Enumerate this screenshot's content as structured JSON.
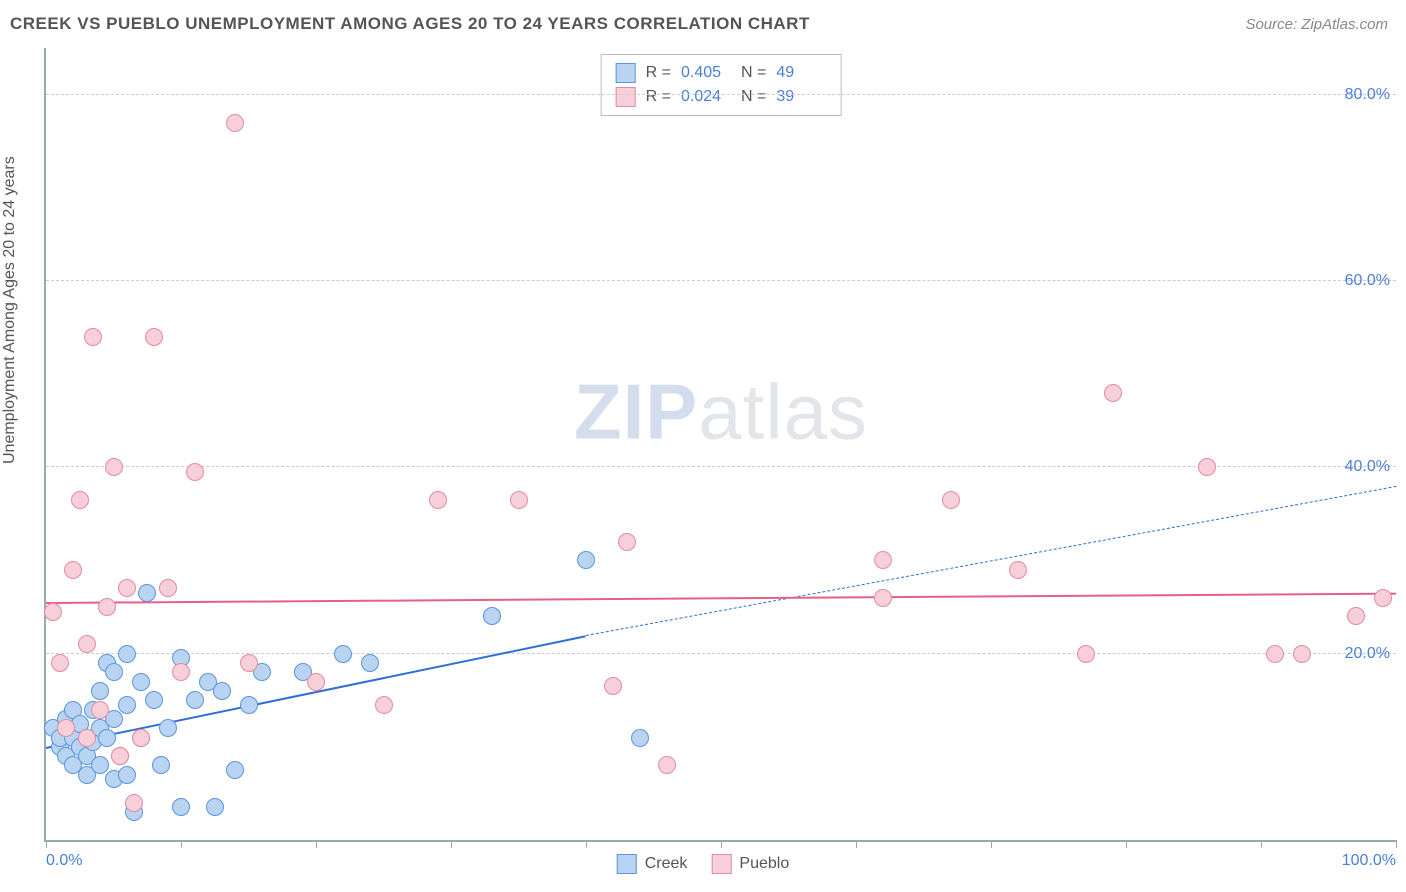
{
  "header": {
    "title": "CREEK VS PUEBLO UNEMPLOYMENT AMONG AGES 20 TO 24 YEARS CORRELATION CHART",
    "source": "Source: ZipAtlas.com"
  },
  "watermark": {
    "part1": "ZIP",
    "part2": "atlas"
  },
  "chart": {
    "type": "scatter",
    "y_axis_label": "Unemployment Among Ages 20 to 24 years",
    "xlim": [
      0,
      100
    ],
    "ylim": [
      0,
      85
    ],
    "x_ticks": [
      0,
      10,
      20,
      30,
      40,
      50,
      60,
      70,
      80,
      90,
      100
    ],
    "x_tick_labels": {
      "0": "0.0%",
      "100": "100.0%"
    },
    "y_gridlines": [
      20,
      40,
      60,
      80
    ],
    "y_tick_labels": {
      "20": "20.0%",
      "40": "40.0%",
      "60": "60.0%",
      "80": "80.0%"
    },
    "background_color": "#ffffff",
    "grid_color": "#cccccc",
    "axis_color": "#99aaaa",
    "tick_label_color": "#4a7fd8",
    "marker_radius": 9,
    "series": [
      {
        "name": "Creek",
        "fill_color": "#b9d4f2",
        "stroke_color": "#5b95dd",
        "trend_color": "#2d6fd6",
        "R": "0.405",
        "N": "49",
        "trend": {
          "x1": 0,
          "y1": 10,
          "x2": 40,
          "y2": 22,
          "solid": true
        },
        "trend_ext": {
          "x1": 40,
          "y1": 22,
          "x2": 100,
          "y2": 38
        },
        "points": [
          [
            0.5,
            12
          ],
          [
            1,
            10
          ],
          [
            1,
            11
          ],
          [
            1.5,
            13
          ],
          [
            1.5,
            9
          ],
          [
            2,
            14
          ],
          [
            2,
            11
          ],
          [
            2,
            8
          ],
          [
            2.5,
            12.5
          ],
          [
            2.5,
            10
          ],
          [
            3,
            11
          ],
          [
            3,
            9
          ],
          [
            3,
            7
          ],
          [
            3.5,
            14
          ],
          [
            3.5,
            10.5
          ],
          [
            4,
            16
          ],
          [
            4,
            12
          ],
          [
            4,
            8
          ],
          [
            4.5,
            19
          ],
          [
            4.5,
            11
          ],
          [
            5,
            18
          ],
          [
            5,
            13
          ],
          [
            5,
            6.5
          ],
          [
            5.5,
            9
          ],
          [
            6,
            20
          ],
          [
            6,
            14.5
          ],
          [
            6,
            7
          ],
          [
            6.5,
            3
          ],
          [
            7,
            17
          ],
          [
            7,
            11
          ],
          [
            7.5,
            26.5
          ],
          [
            8,
            15
          ],
          [
            8.5,
            8
          ],
          [
            9,
            12
          ],
          [
            10,
            19.5
          ],
          [
            10,
            3.5
          ],
          [
            11,
            15
          ],
          [
            12,
            17
          ],
          [
            12.5,
            3.5
          ],
          [
            13,
            16
          ],
          [
            14,
            7.5
          ],
          [
            15,
            14.5
          ],
          [
            16,
            18
          ],
          [
            19,
            18
          ],
          [
            22,
            20
          ],
          [
            24,
            19
          ],
          [
            33,
            24
          ],
          [
            40,
            30
          ],
          [
            44,
            11
          ]
        ]
      },
      {
        "name": "Pueblo",
        "fill_color": "#f6cfd8",
        "stroke_color": "#e58aa2",
        "trend_color": "#e55f86",
        "R": "0.024",
        "N": "39",
        "trend": {
          "x1": 0,
          "y1": 25.5,
          "x2": 100,
          "y2": 26.5,
          "solid": true
        },
        "points": [
          [
            0.5,
            24.5
          ],
          [
            1,
            19
          ],
          [
            1.5,
            12
          ],
          [
            2,
            29
          ],
          [
            2.5,
            36.5
          ],
          [
            3,
            21
          ],
          [
            3,
            11
          ],
          [
            3.5,
            54
          ],
          [
            4,
            14
          ],
          [
            4.5,
            25
          ],
          [
            5,
            40
          ],
          [
            5.5,
            9
          ],
          [
            6,
            27
          ],
          [
            6.5,
            4
          ],
          [
            7,
            11
          ],
          [
            8,
            54
          ],
          [
            9,
            27
          ],
          [
            10,
            18
          ],
          [
            11,
            39.5
          ],
          [
            14,
            77
          ],
          [
            15,
            19
          ],
          [
            20,
            17
          ],
          [
            25,
            14.5
          ],
          [
            29,
            36.5
          ],
          [
            35,
            36.5
          ],
          [
            42,
            16.5
          ],
          [
            43,
            32
          ],
          [
            46,
            8
          ],
          [
            62,
            30
          ],
          [
            62,
            26
          ],
          [
            67,
            36.5
          ],
          [
            72,
            29
          ],
          [
            77,
            20
          ],
          [
            79,
            48
          ],
          [
            86,
            40
          ],
          [
            91,
            20
          ],
          [
            93,
            20
          ],
          [
            97,
            24
          ],
          [
            99,
            26
          ]
        ]
      }
    ]
  },
  "stat_legend": {
    "rows": [
      {
        "series_idx": 0,
        "r_label": "R =",
        "n_label": "N ="
      },
      {
        "series_idx": 1,
        "r_label": "R =",
        "n_label": "N ="
      }
    ]
  }
}
